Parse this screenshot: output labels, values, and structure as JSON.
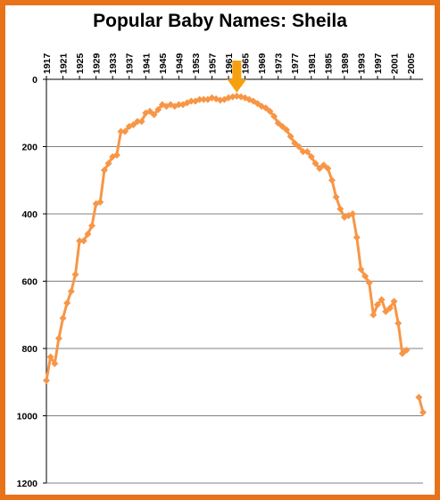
{
  "colors": {
    "frame": "#e8731b",
    "series": "#f79646",
    "arrow": "#f7a00f",
    "grid": "#808080"
  },
  "chart_data": {
    "type": "line",
    "title": "Popular Baby Names:  Sheila",
    "series_name": "",
    "x_tick_labels": [
      "1917",
      "1921",
      "1925",
      "1929",
      "1933",
      "1937",
      "1941",
      "1945",
      "1949",
      "1953",
      "1957",
      "1961",
      "1965",
      "1969",
      "1973",
      "1977",
      "1981",
      "1985",
      "1989",
      "1993",
      "1997",
      "2001",
      "2005"
    ],
    "y_tick_labels": [
      "0",
      "200",
      "400",
      "600",
      "800",
      "1000",
      "1200"
    ],
    "xlim": [
      1917,
      2008
    ],
    "ylim": [
      0,
      1200
    ],
    "y_inverted": true,
    "x_axis_position": "top",
    "gridlines": "horizontal",
    "annotation": {
      "type": "arrow",
      "x": 1963,
      "label": ""
    },
    "x": [
      1917,
      1918,
      1919,
      1920,
      1921,
      1922,
      1923,
      1924,
      1925,
      1926,
      1927,
      1928,
      1929,
      1930,
      1931,
      1932,
      1933,
      1934,
      1935,
      1936,
      1937,
      1938,
      1939,
      1940,
      1941,
      1942,
      1943,
      1944,
      1945,
      1946,
      1947,
      1948,
      1949,
      1950,
      1951,
      1952,
      1953,
      1954,
      1955,
      1956,
      1957,
      1958,
      1959,
      1960,
      1961,
      1962,
      1963,
      1964,
      1965,
      1966,
      1967,
      1968,
      1969,
      1970,
      1971,
      1972,
      1973,
      1974,
      1975,
      1976,
      1977,
      1978,
      1979,
      1980,
      1981,
      1982,
      1983,
      1984,
      1985,
      1986,
      1987,
      1988,
      1989,
      1990,
      1991,
      1992,
      1993,
      1994,
      1995,
      1996,
      1997,
      1998,
      1999,
      2000,
      2001,
      2002,
      2003,
      2004,
      2005,
      2006,
      2007,
      2008
    ],
    "values": [
      895,
      825,
      845,
      770,
      710,
      665,
      630,
      580,
      480,
      480,
      460,
      435,
      370,
      365,
      270,
      250,
      230,
      225,
      155,
      155,
      140,
      135,
      125,
      125,
      100,
      95,
      105,
      90,
      75,
      80,
      75,
      80,
      75,
      75,
      70,
      65,
      65,
      60,
      60,
      60,
      55,
      58,
      62,
      60,
      55,
      52,
      50,
      52,
      55,
      60,
      65,
      72,
      80,
      85,
      95,
      110,
      130,
      140,
      150,
      170,
      190,
      200,
      215,
      215,
      230,
      250,
      265,
      255,
      265,
      300,
      350,
      385,
      410,
      405,
      400,
      470,
      565,
      585,
      605,
      700,
      670,
      655,
      690,
      680,
      660,
      725,
      815,
      805,
      null,
      null,
      945,
      990
    ]
  }
}
